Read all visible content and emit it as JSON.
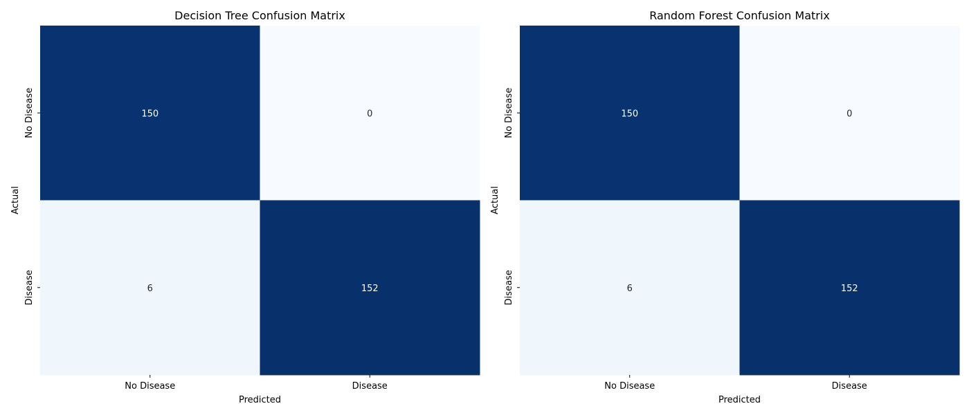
{
  "chart_data": [
    {
      "type": "heatmap",
      "title": "Decision Tree Confusion Matrix",
      "xlabel": "Predicted",
      "ylabel": "Actual",
      "x_categories": [
        "No Disease",
        "Disease"
      ],
      "y_categories": [
        "No Disease",
        "Disease"
      ],
      "values": [
        [
          150,
          0
        ],
        [
          6,
          152
        ]
      ],
      "colormap": "Blues",
      "colorbar": false,
      "colors": {
        "low": "#f7fbff",
        "high": "#08306b",
        "text_dark_bg": "#ffffff",
        "text_light_bg": "#262626"
      }
    },
    {
      "type": "heatmap",
      "title": "Random Forest Confusion Matrix",
      "xlabel": "Predicted",
      "ylabel": "Actual",
      "x_categories": [
        "No Disease",
        "Disease"
      ],
      "y_categories": [
        "No Disease",
        "Disease"
      ],
      "values": [
        [
          150,
          0
        ],
        [
          6,
          152
        ]
      ],
      "colormap": "Blues",
      "colorbar": false,
      "colors": {
        "low": "#f7fbff",
        "high": "#08306b",
        "text_dark_bg": "#ffffff",
        "text_light_bg": "#262626"
      }
    }
  ]
}
